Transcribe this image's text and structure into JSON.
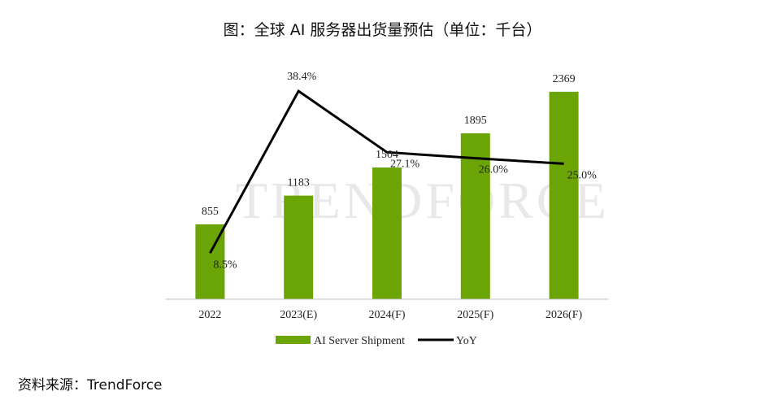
{
  "title": "图：全球 AI 服务器出货量预估（单位：千台）",
  "source": "资料来源：TrendForce",
  "watermark": "TRENDFORCE",
  "chart_data": {
    "type": "bar",
    "categories": [
      "2022",
      "2023(E)",
      "2024(F)",
      "2025(F)",
      "2026(F)"
    ],
    "series": [
      {
        "name": "AI Server Shipment",
        "type": "bar",
        "values": [
          855,
          1183,
          1504,
          1895,
          2369
        ],
        "color": "#6aa505",
        "labels": [
          "855",
          "1183",
          "1504",
          "1895",
          "2369"
        ]
      },
      {
        "name": "YoY",
        "type": "line",
        "values": [
          8.5,
          38.4,
          27.1,
          26.0,
          25.0
        ],
        "color": "#000000",
        "labels": [
          "8.5%",
          "38.4%",
          "27.1%",
          "26.0%",
          "25.0%"
        ]
      }
    ],
    "ylim": [
      0,
      2600
    ],
    "ylim_secondary": [
      0,
      42
    ],
    "legend_position": "bottom"
  }
}
